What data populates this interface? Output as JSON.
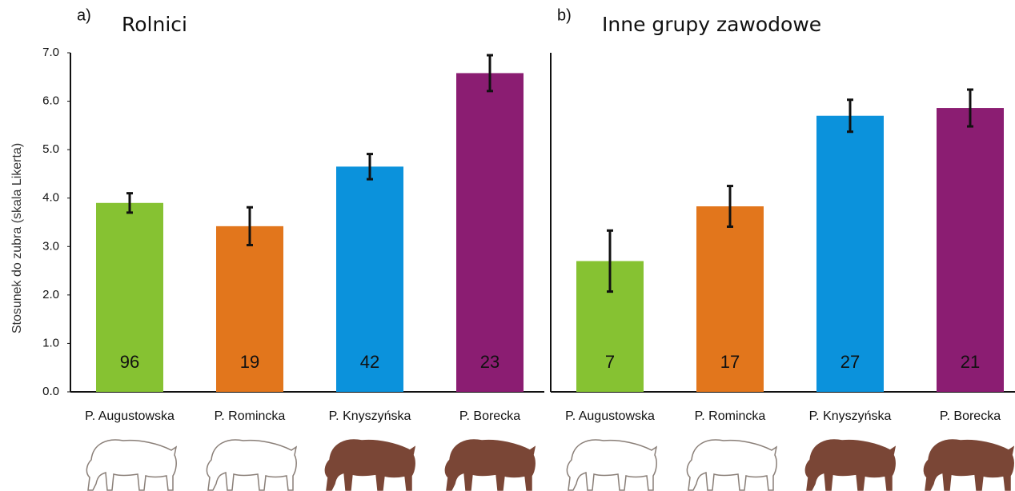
{
  "chart_data": [
    {
      "type": "bar",
      "label": "a)",
      "title": "Rolnici",
      "ylabel": "Stosunek do zubra (skala Likerta)",
      "categories": [
        "P. Augustowska",
        "P. Romincka",
        "P. Knyszyńska",
        "P. Borecka"
      ],
      "values": [
        3.9,
        3.42,
        4.65,
        6.58
      ],
      "errors": [
        0.2,
        0.39,
        0.26,
        0.37
      ],
      "annotations": [
        "96",
        "19",
        "42",
        "23"
      ],
      "colors": [
        "#86c232",
        "#e2761c",
        "#0b92dc",
        "#8b1d72"
      ],
      "ylim": [
        0,
        7
      ],
      "yticks": [
        {
          "value": 0,
          "label": "0.0"
        },
        {
          "value": 1,
          "label": "1.0"
        },
        {
          "value": 2,
          "label": "2.0"
        },
        {
          "value": 3,
          "label": "3.0"
        },
        {
          "value": 4,
          "label": "4.0"
        },
        {
          "value": 5,
          "label": "5.0"
        },
        {
          "value": 6,
          "label": "6.0"
        },
        {
          "value": 7,
          "label": "7.0"
        }
      ]
    },
    {
      "type": "bar",
      "label": "b)",
      "title": "Inne grupy zawodowe",
      "categories": [
        "P. Augustowska",
        "P. Romincka",
        "P. Knyszyńska",
        "P. Borecka"
      ],
      "values": [
        2.7,
        3.83,
        5.7,
        5.86
      ],
      "errors": [
        0.63,
        0.42,
        0.33,
        0.38
      ],
      "annotations": [
        "7",
        "17",
        "27",
        "21"
      ],
      "colors": [
        "#86c232",
        "#e2761c",
        "#0b92dc",
        "#8b1d72"
      ],
      "ylim": [
        0,
        7
      ]
    }
  ]
}
